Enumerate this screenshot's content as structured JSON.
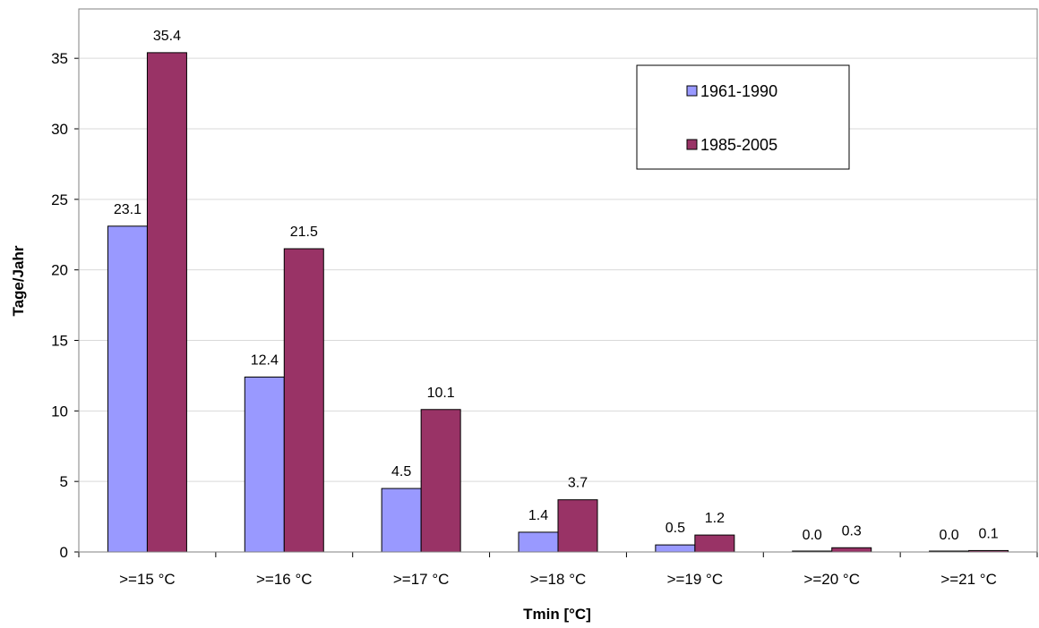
{
  "chart_data": {
    "type": "bar",
    "categories": [
      ">=15 °C",
      ">=16 °C",
      ">=17 °C",
      ">=18 °C",
      ">=19 °C",
      ">=20 °C",
      ">=21 °C"
    ],
    "series": [
      {
        "name": "1961-1990",
        "color": "#9999ff",
        "values": [
          23.1,
          12.4,
          4.5,
          1.4,
          0.5,
          0.0,
          0.0
        ],
        "labels": [
          "23.1",
          "12.4",
          "4.5",
          "1.4",
          "0.5",
          "0.0",
          "0.0"
        ]
      },
      {
        "name": "1985-2005",
        "color": "#993366",
        "values": [
          35.4,
          21.5,
          10.1,
          3.7,
          1.2,
          0.3,
          0.1
        ],
        "labels": [
          "35.4",
          "21.5",
          "10.1",
          "3.7",
          "1.2",
          "0.3",
          "0.1"
        ]
      }
    ],
    "xlabel": "Tmin [°C]",
    "ylabel": "Tage/Jahr",
    "ylim": [
      0,
      38.5
    ],
    "yticks": [
      0,
      5,
      10,
      15,
      20,
      25,
      30,
      35
    ],
    "grid": true,
    "legend_position": "top-right"
  }
}
